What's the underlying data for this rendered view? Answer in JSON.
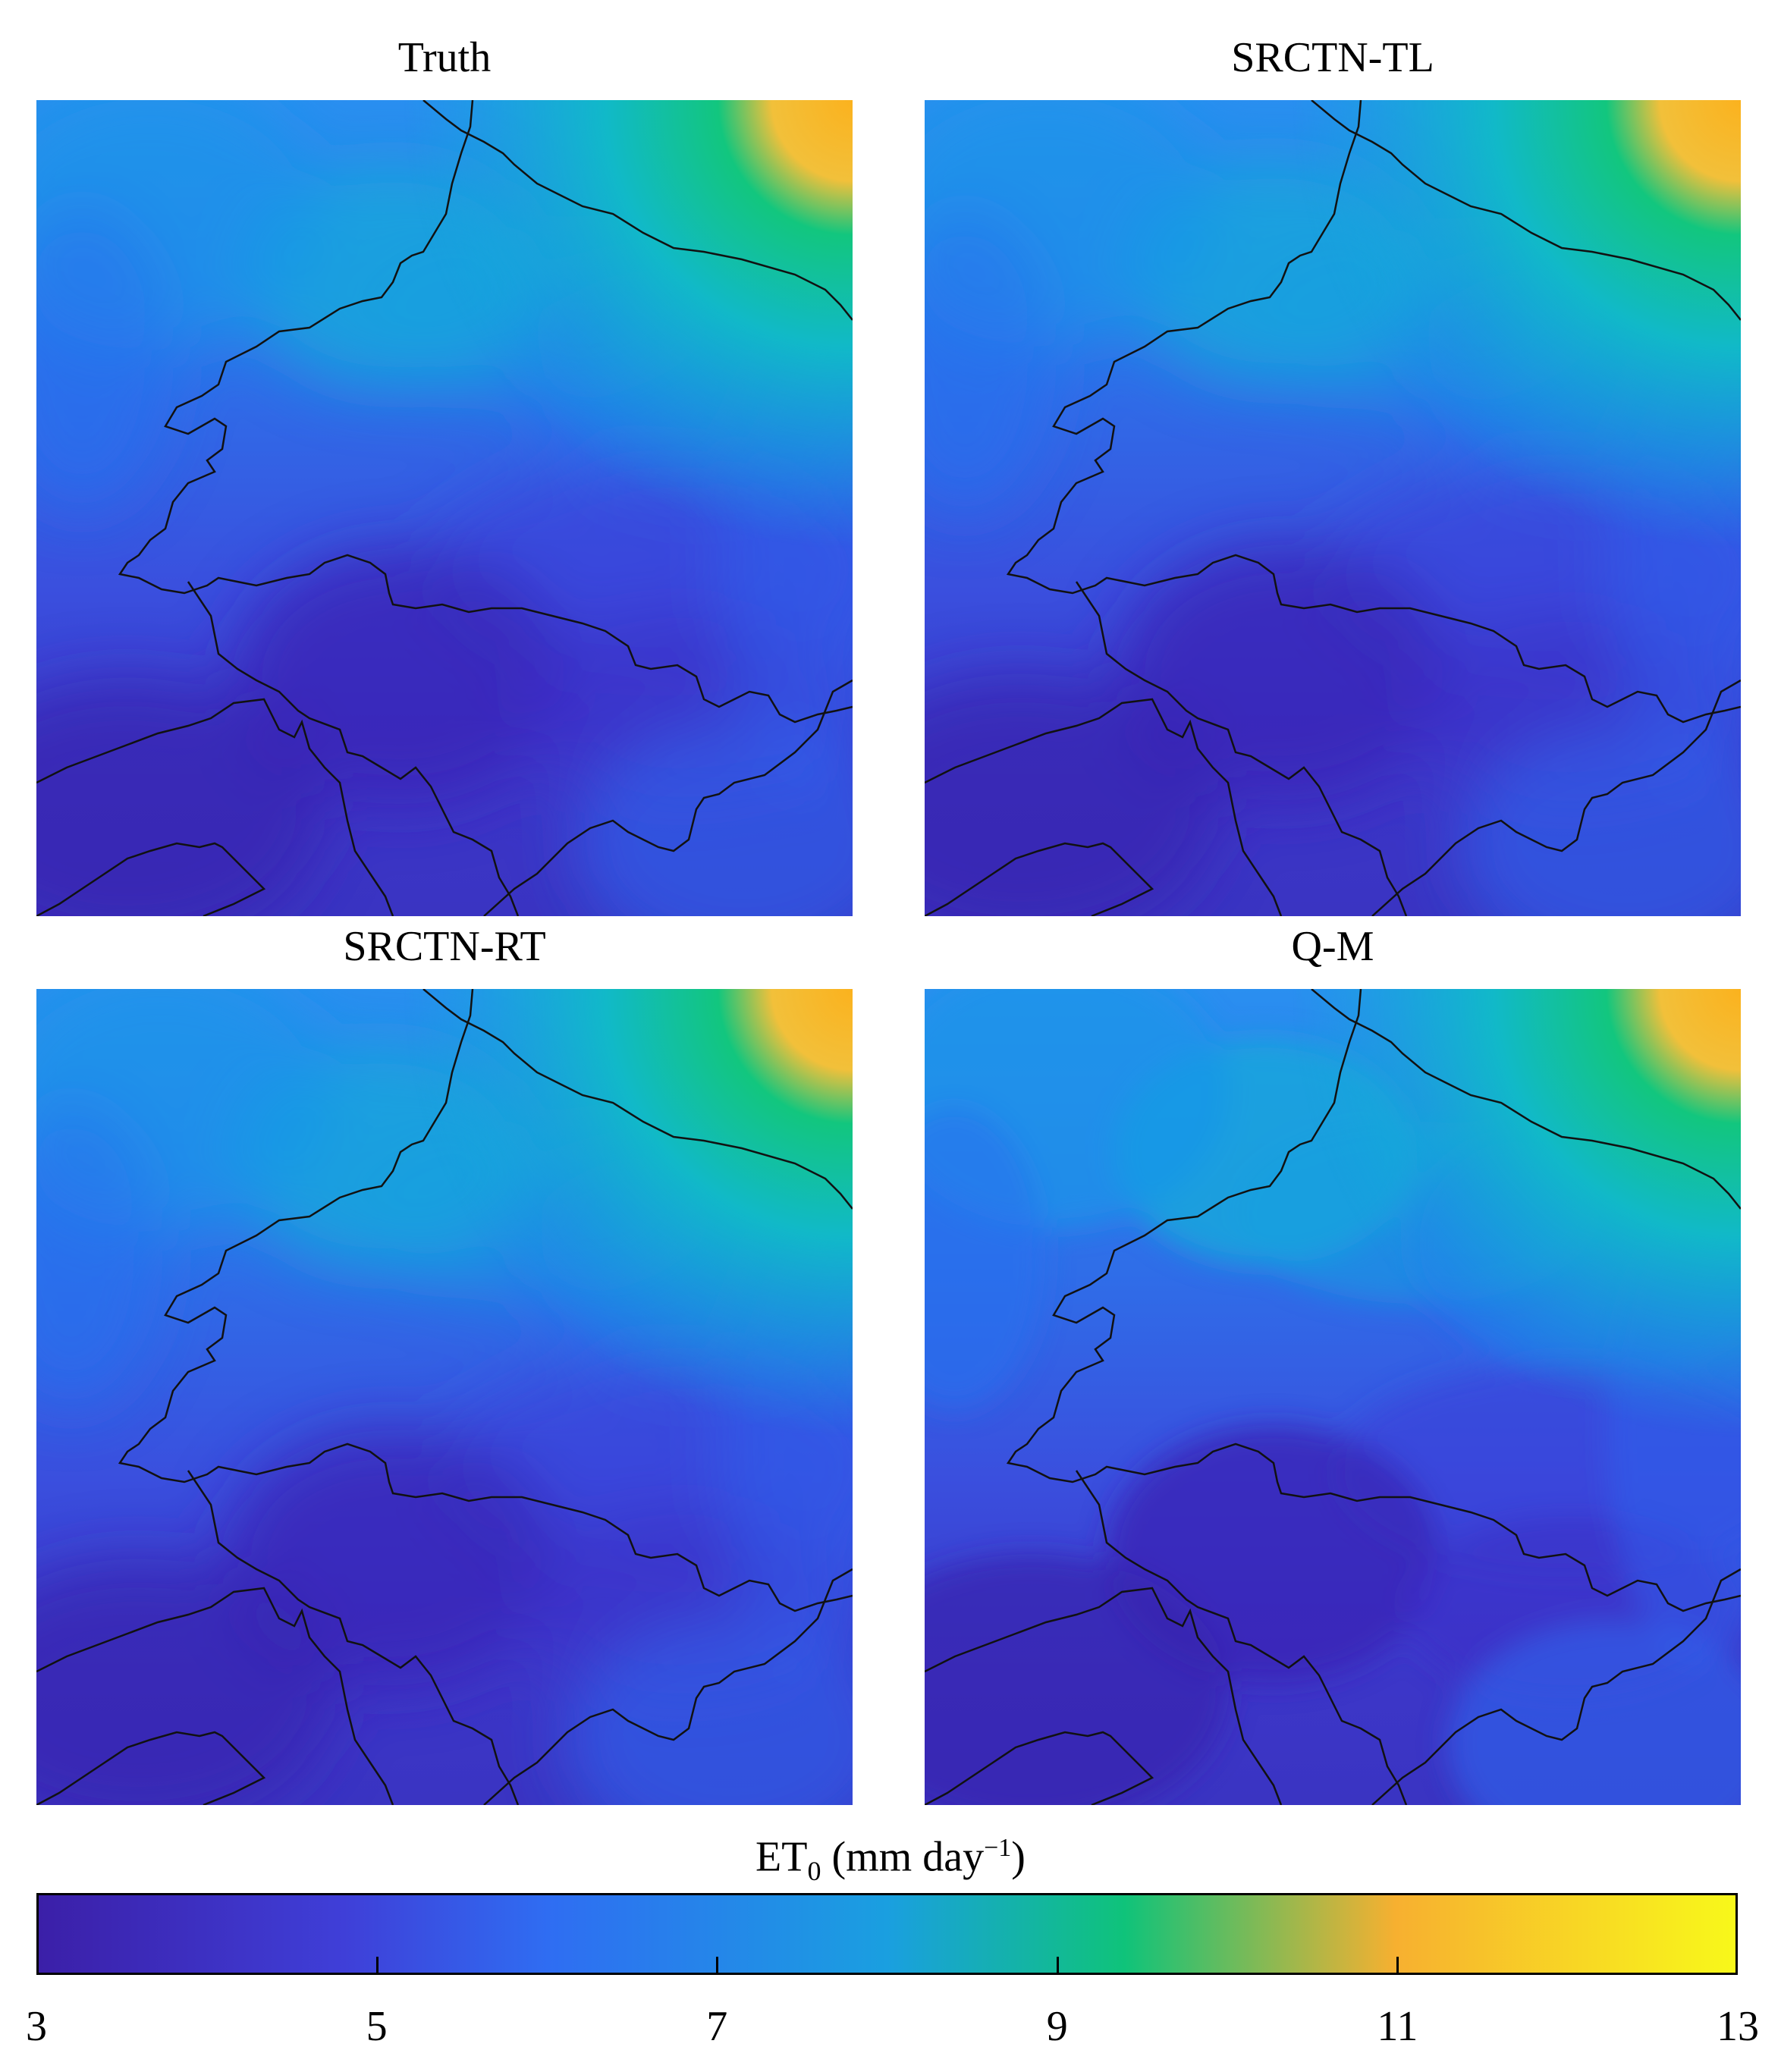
{
  "panels": [
    {
      "title": "Truth"
    },
    {
      "title": "SRCTN-TL"
    },
    {
      "title": "SRCTN-RT"
    },
    {
      "title": "Q-M"
    }
  ],
  "colorbar": {
    "label_main": "ET",
    "label_sub": "0",
    "label_units": " (mm day",
    "label_sup": "−1",
    "label_close": ")",
    "min": 3,
    "max": 13,
    "ticks": [
      "3",
      "5",
      "7",
      "9",
      "11",
      "13"
    ],
    "colors": [
      "#3b1fa8",
      "#3f3fd8",
      "#2f6df2",
      "#1a9fe0",
      "#0fc37a",
      "#f7b030",
      "#f8f81a"
    ]
  }
}
